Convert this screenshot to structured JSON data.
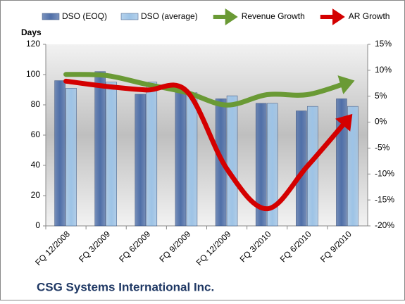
{
  "chart_data": {
    "type": "bar_line",
    "title": "CSG Systems International Inc.",
    "y_label": "Days",
    "categories": [
      "FQ 12/2008",
      "FQ 3/2009",
      "FQ 6/2009",
      "FQ 9/2009",
      "FQ 12/2009",
      "FQ 3/2010",
      "FQ 6/2010",
      "FQ 9/2010"
    ],
    "series": [
      {
        "name": "DSO (EOQ)",
        "color": "#4f6fa8",
        "kind": "bar",
        "values": [
          96,
          102,
          87,
          89,
          84,
          81,
          76,
          84
        ]
      },
      {
        "name": "DSO (average)",
        "color": "#9dc3e6",
        "kind": "bar",
        "values": [
          91,
          95,
          95,
          88,
          86,
          81,
          79,
          79
        ]
      },
      {
        "name": "Revenue Growth",
        "color": "#6a9a35",
        "kind": "line",
        "axis": "y2",
        "values": [
          9.2,
          9,
          7.3,
          5.7,
          3.3,
          5.3,
          5.3,
          7.6
        ]
      },
      {
        "name": "AR Growth",
        "color": "#d40000",
        "kind": "line",
        "axis": "y2",
        "values": [
          7.9,
          6.9,
          6.2,
          6,
          -9,
          -16.7,
          -8.5,
          0.5
        ]
      }
    ],
    "ylim": [
      0,
      120
    ],
    "yticks": [
      0,
      20,
      40,
      60,
      80,
      100,
      120
    ],
    "y2lim": [
      -20,
      15
    ],
    "y2ticks": [
      {
        "value": -20,
        "label": "-20%"
      },
      {
        "value": -15,
        "label": "-15%"
      },
      {
        "value": -10,
        "label": "-10%"
      },
      {
        "value": -5,
        "label": "-5%"
      },
      {
        "value": 0,
        "label": "0%"
      },
      {
        "value": 5,
        "label": "5%"
      },
      {
        "value": 10,
        "label": "10%"
      },
      {
        "value": 15,
        "label": "15%"
      }
    ]
  }
}
